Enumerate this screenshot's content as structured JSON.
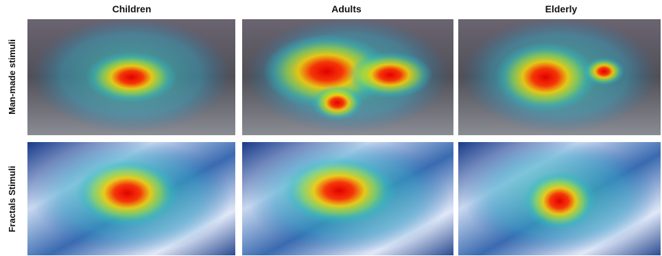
{
  "columns": [
    "Children",
    "Adults",
    "Elderly"
  ],
  "rows": [
    "Man-made stimuli",
    "Fractals Stimuli"
  ]
}
